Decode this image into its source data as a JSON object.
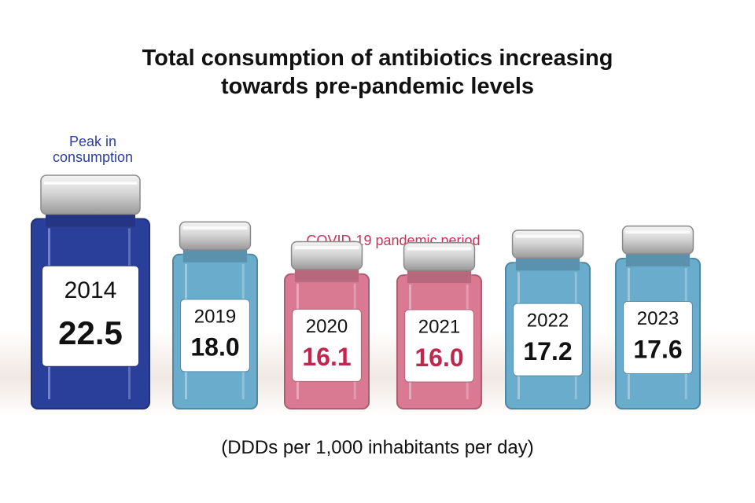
{
  "chart_data": {
    "type": "bar",
    "title": "Total consumption of antibiotics increasing towards pre-pandemic levels",
    "title_lines": [
      "Total consumption of antibiotics increasing",
      "towards pre-pandemic levels"
    ],
    "categories": [
      "2014",
      "2019",
      "2020",
      "2021",
      "2022",
      "2023"
    ],
    "values": [
      22.5,
      18.0,
      16.1,
      16.0,
      17.2,
      17.6
    ],
    "value_labels": [
      "22.5",
      "18.0",
      "16.1",
      "16.0",
      "17.2",
      "17.6"
    ],
    "groups": [
      "peak",
      "normal",
      "pandemic",
      "pandemic",
      "normal",
      "normal"
    ],
    "ylabel": "(DDDs per 1,000 inhabitants per day)",
    "annotations": {
      "peak": [
        "Peak in",
        "consumption"
      ],
      "covid": "COVID-19 pandemic period"
    },
    "colors": {
      "peak": "#2a3f9a",
      "normal": "#6aaccc",
      "pandemic": "#d97a92",
      "pandemic_text": "#c0264e",
      "annotation_blue": "#2c3f9c"
    }
  }
}
